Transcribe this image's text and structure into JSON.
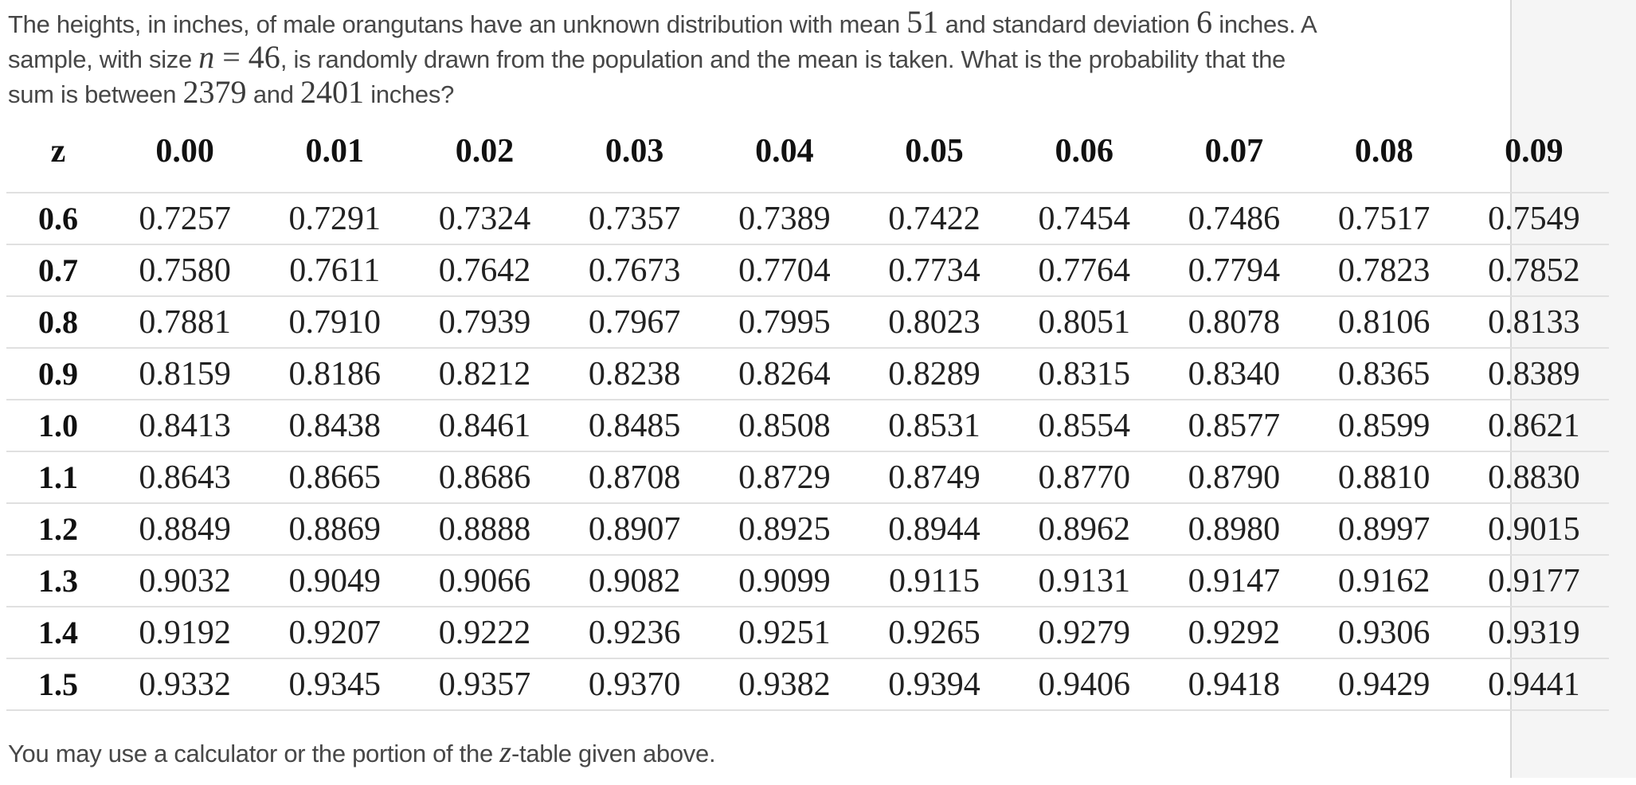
{
  "problem": {
    "lines": [
      [
        {
          "t": "text",
          "v": "The heights, in inches, of male orangutans have an unknown distribution with mean "
        },
        {
          "t": "math",
          "v": "51"
        },
        {
          "t": "text",
          "v": " and standard deviation "
        },
        {
          "t": "math",
          "v": "6"
        },
        {
          "t": "text",
          "v": " inches. A"
        }
      ],
      [
        {
          "t": "text",
          "v": "sample, with size "
        },
        {
          "t": "var",
          "v": "n"
        },
        {
          "t": "math",
          "v": " = 46"
        },
        {
          "t": "text",
          "v": ", is randomly drawn from the population and the mean is taken. What is the probability that the"
        }
      ],
      [
        {
          "t": "text",
          "v": "sum is between "
        },
        {
          "t": "math",
          "v": "2379"
        },
        {
          "t": "text",
          "v": " and "
        },
        {
          "t": "math",
          "v": "2401"
        },
        {
          "t": "text",
          "v": " inches?"
        }
      ]
    ]
  },
  "ztable": {
    "corner_label": "z",
    "columns": [
      "0.00",
      "0.01",
      "0.02",
      "0.03",
      "0.04",
      "0.05",
      "0.06",
      "0.07",
      "0.08",
      "0.09"
    ],
    "rows": [
      {
        "z": "0.6",
        "values": [
          "0.7257",
          "0.7291",
          "0.7324",
          "0.7357",
          "0.7389",
          "0.7422",
          "0.7454",
          "0.7486",
          "0.7517",
          "0.7549"
        ]
      },
      {
        "z": "0.7",
        "values": [
          "0.7580",
          "0.7611",
          "0.7642",
          "0.7673",
          "0.7704",
          "0.7734",
          "0.7764",
          "0.7794",
          "0.7823",
          "0.7852"
        ]
      },
      {
        "z": "0.8",
        "values": [
          "0.7881",
          "0.7910",
          "0.7939",
          "0.7967",
          "0.7995",
          "0.8023",
          "0.8051",
          "0.8078",
          "0.8106",
          "0.8133"
        ]
      },
      {
        "z": "0.9",
        "values": [
          "0.8159",
          "0.8186",
          "0.8212",
          "0.8238",
          "0.8264",
          "0.8289",
          "0.8315",
          "0.8340",
          "0.8365",
          "0.8389"
        ]
      },
      {
        "z": "1.0",
        "values": [
          "0.8413",
          "0.8438",
          "0.8461",
          "0.8485",
          "0.8508",
          "0.8531",
          "0.8554",
          "0.8577",
          "0.8599",
          "0.8621"
        ]
      },
      {
        "z": "1.1",
        "values": [
          "0.8643",
          "0.8665",
          "0.8686",
          "0.8708",
          "0.8729",
          "0.8749",
          "0.8770",
          "0.8790",
          "0.8810",
          "0.8830"
        ]
      },
      {
        "z": "1.2",
        "values": [
          "0.8849",
          "0.8869",
          "0.8888",
          "0.8907",
          "0.8925",
          "0.8944",
          "0.8962",
          "0.8980",
          "0.8997",
          "0.9015"
        ]
      },
      {
        "z": "1.3",
        "values": [
          "0.9032",
          "0.9049",
          "0.9066",
          "0.9082",
          "0.9099",
          "0.9115",
          "0.9131",
          "0.9147",
          "0.9162",
          "0.9177"
        ]
      },
      {
        "z": "1.4",
        "values": [
          "0.9192",
          "0.9207",
          "0.9222",
          "0.9236",
          "0.9251",
          "0.9265",
          "0.9279",
          "0.9292",
          "0.9306",
          "0.9319"
        ]
      },
      {
        "z": "1.5",
        "values": [
          "0.9332",
          "0.9345",
          "0.9357",
          "0.9370",
          "0.9382",
          "0.9394",
          "0.9406",
          "0.9418",
          "0.9429",
          "0.9441"
        ]
      }
    ]
  },
  "footer": {
    "segments": [
      {
        "t": "text",
        "v": "You may use a calculator or the portion of the "
      },
      {
        "t": "var",
        "v": "z"
      },
      {
        "t": "text",
        "v": "-table given above."
      }
    ]
  },
  "colors": {
    "page_background": "#ffffff",
    "right_gutter_background": "#f5f5f5",
    "gutter_border": "#d8d8d8",
    "body_text": "#474747",
    "table_text": "#212121",
    "table_bold_text": "#111111",
    "row_divider": "#e0e0e0"
  }
}
